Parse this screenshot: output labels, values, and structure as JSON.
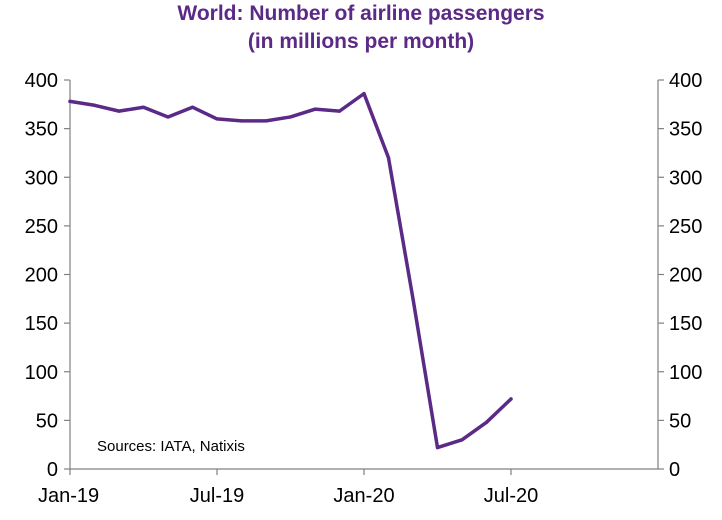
{
  "chart_data": {
    "type": "line",
    "title": "World: Number of airline passengers",
    "subtitle": "(in millions per month)",
    "ylim": [
      0,
      400
    ],
    "y_ticks": [
      "0",
      "50",
      "100",
      "150",
      "200",
      "250",
      "300",
      "350",
      "400"
    ],
    "x_tick_labels": [
      "Jan-19",
      "Jul-19",
      "Jan-20",
      "Jul-20"
    ],
    "x_ticks_month_index": [
      0,
      6,
      12,
      18
    ],
    "x_range_months": [
      0,
      24
    ],
    "grid": false,
    "source_note": "Sources:  IATA, Natixis",
    "series": [
      {
        "x": [
          "Jan-19",
          "Feb-19",
          "Mar-19",
          "Apr-19",
          "May-19",
          "Jun-19",
          "Jul-19",
          "Aug-19",
          "Sep-19",
          "Oct-19",
          "Nov-19",
          "Dec-19",
          "Jan-20",
          "Feb-20",
          "Mar-20",
          "Apr-20",
          "May-20",
          "Jun-20",
          "Jul-20"
        ],
        "values": [
          378,
          374,
          368,
          372,
          362,
          372,
          360,
          358,
          358,
          362,
          370,
          368,
          386,
          320,
          175,
          22,
          30,
          48,
          72
        ],
        "color": "#5b2a86"
      }
    ]
  }
}
